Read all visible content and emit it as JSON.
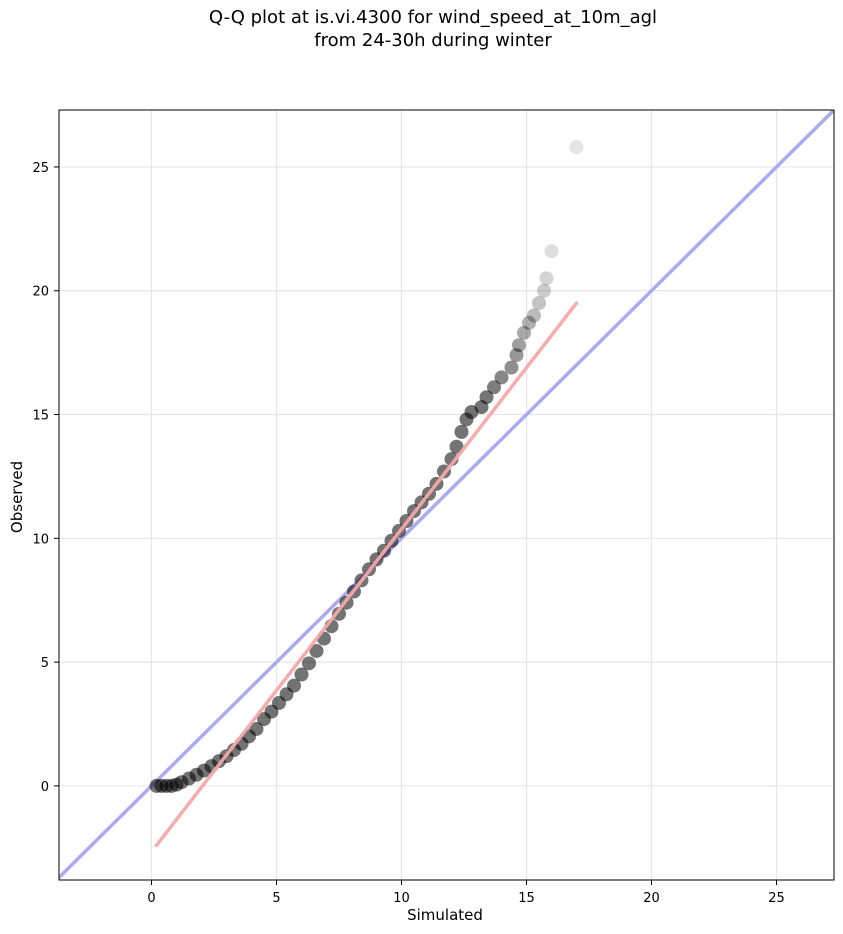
{
  "title_line1": "Q-Q plot at is.vi.4300 for wind_speed_at_10m_agl",
  "title_line2": "from 24-30h during winter",
  "chart_data": {
    "type": "scatter",
    "xlabel": "Simulated",
    "ylabel": "Observed",
    "xlim": [
      -3.7,
      27.3
    ],
    "ylim": [
      -3.8,
      27.3
    ],
    "xticks": [
      0,
      5,
      10,
      15,
      20,
      25
    ],
    "yticks": [
      0,
      5,
      10,
      15,
      20,
      25
    ],
    "grid": true,
    "colors": {
      "identity_line": "#aaaaf0",
      "fit_line": "#f5a8a8",
      "points": "#000000"
    },
    "reference_line": {
      "name": "y = x",
      "x": [
        -3.7,
        27.3
      ],
      "y": [
        -3.7,
        27.3
      ]
    },
    "fit_line": {
      "x": [
        0.2,
        17.0
      ],
      "y": [
        -2.4,
        19.5
      ]
    },
    "quantiles": [
      [
        0.2,
        0.0
      ],
      [
        0.4,
        0.0
      ],
      [
        0.6,
        0.0
      ],
      [
        0.8,
        0.0
      ],
      [
        1.0,
        0.05
      ],
      [
        1.2,
        0.15
      ],
      [
        1.5,
        0.3
      ],
      [
        1.8,
        0.45
      ],
      [
        2.1,
        0.62
      ],
      [
        2.4,
        0.8
      ],
      [
        2.7,
        1.0
      ],
      [
        3.0,
        1.2
      ],
      [
        3.3,
        1.45
      ],
      [
        3.6,
        1.7
      ],
      [
        3.9,
        2.0
      ],
      [
        4.2,
        2.3
      ],
      [
        4.5,
        2.7
      ],
      [
        4.8,
        3.0
      ],
      [
        5.1,
        3.35
      ],
      [
        5.4,
        3.7
      ],
      [
        5.7,
        4.05
      ],
      [
        6.0,
        4.5
      ],
      [
        6.3,
        4.95
      ],
      [
        6.6,
        5.45
      ],
      [
        6.9,
        5.95
      ],
      [
        7.2,
        6.45
      ],
      [
        7.5,
        6.95
      ],
      [
        7.8,
        7.4
      ],
      [
        8.1,
        7.85
      ],
      [
        8.4,
        8.3
      ],
      [
        8.7,
        8.75
      ],
      [
        9.0,
        9.15
      ],
      [
        9.3,
        9.5
      ],
      [
        9.6,
        9.9
      ],
      [
        9.9,
        10.3
      ],
      [
        10.2,
        10.7
      ],
      [
        10.5,
        11.1
      ],
      [
        10.8,
        11.45
      ],
      [
        11.1,
        11.8
      ],
      [
        11.4,
        12.2
      ],
      [
        11.7,
        12.7
      ],
      [
        12.0,
        13.2
      ],
      [
        12.2,
        13.7
      ],
      [
        12.4,
        14.3
      ],
      [
        12.6,
        14.8
      ],
      [
        12.8,
        15.1
      ],
      [
        13.2,
        15.3
      ],
      [
        13.4,
        15.7
      ],
      [
        13.7,
        16.1
      ],
      [
        14.0,
        16.5
      ],
      [
        14.4,
        16.9
      ],
      [
        14.6,
        17.4
      ],
      [
        14.7,
        17.8
      ],
      [
        14.9,
        18.3
      ],
      [
        15.1,
        18.7
      ],
      [
        15.3,
        19.0
      ],
      [
        15.5,
        19.5
      ],
      [
        15.7,
        20.0
      ],
      [
        15.8,
        20.5
      ],
      [
        16.0,
        21.6
      ],
      [
        17.0,
        25.8
      ]
    ]
  }
}
